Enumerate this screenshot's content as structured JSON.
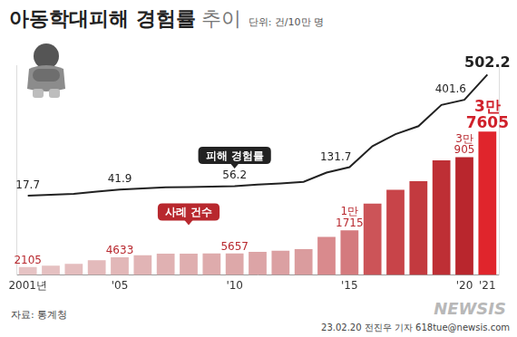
{
  "chart_data": {
    "type": "bar",
    "title": "아동학대피해 경험률",
    "subtitle": "추이",
    "annotations": {
      "unit": "단위: 건/10만 명",
      "source": "자료: 통계청",
      "credit": "23.02.20 전진우 기자 618tue@newsis.com",
      "logo": "NEWSIS"
    },
    "categories": [
      "2001년",
      null,
      null,
      null,
      "'05",
      null,
      null,
      null,
      null,
      "'10",
      null,
      null,
      null,
      null,
      "'15",
      null,
      null,
      null,
      null,
      "'20",
      "'21"
    ],
    "series": [
      {
        "name": "사례 건수",
        "type": "bar",
        "colors": [
          "#e6c3c4",
          "#e5c0c1",
          "#e4bdbe",
          "#e3babb",
          "#e2b7b8",
          "#e1b4b5",
          "#e0b1b2",
          "#dfaeaf",
          "#deabac",
          "#dda8a9",
          "#dca4a6",
          "#dba0a2",
          "#da9c9e",
          "#d98a8d",
          "#d47a7e",
          "#cc5458",
          "#c84449",
          "#c33a3f",
          "#be2f35",
          "#b9262d",
          "#e0252c"
        ],
        "values": [
          2105,
          2478,
          2921,
          3891,
          4633,
          5202,
          5581,
          5578,
          5685,
          5657,
          6058,
          6403,
          6796,
          10027,
          11715,
          18700,
          22367,
          24604,
          30045,
          30905,
          37605
        ],
        "value_labels": [
          "2105",
          null,
          null,
          null,
          "4633",
          null,
          null,
          null,
          null,
          "5657",
          null,
          null,
          null,
          null,
          "1만 1715",
          null,
          null,
          null,
          null,
          "3만 905",
          "3만 7605"
        ]
      },
      {
        "name": "피해 경험률",
        "type": "line",
        "axis": "y2",
        "color": "#222222",
        "values": [
          17.7,
          21,
          25,
          34,
          41.9,
          47,
          51,
          52,
          54,
          56.2,
          62,
          67,
          73,
          110,
          131.7,
          216,
          264,
          296,
          381,
          401.6,
          502.2
        ],
        "value_labels": [
          "17.7",
          null,
          null,
          null,
          "41.9",
          null,
          null,
          null,
          null,
          "56.2",
          null,
          null,
          null,
          null,
          "131.7",
          null,
          null,
          null,
          null,
          "401.6",
          "502.2"
        ]
      }
    ],
    "ylim": [
      0,
      55000
    ],
    "y2lim": [
      -300,
      540
    ],
    "grid": false,
    "data_labels": true,
    "tick_labels": "x"
  }
}
